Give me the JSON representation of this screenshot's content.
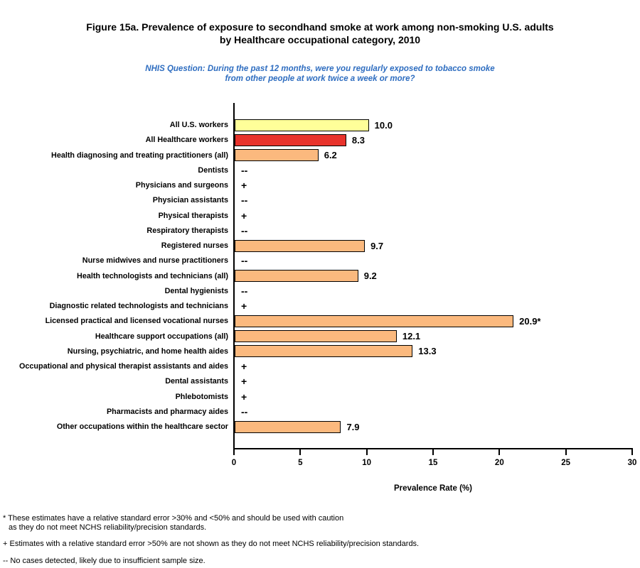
{
  "figure": {
    "title_line1": "Figure 15a. Prevalence of exposure to secondhand smoke at work among non-smoking U.S. adults",
    "title_line2": "by Healthcare occupational category, 2010",
    "subtitle_line1": "NHIS Question: During the past 12 months, were you regularly exposed to tobacco smoke",
    "subtitle_line2": "from other people at work twice a week or more?"
  },
  "colors": {
    "subtitle_blue": "#2E6DC0",
    "bar_yellow": "#FFFF99",
    "bar_red": "#E8332C",
    "bar_orange": "#FBB97E",
    "axis": "#000000"
  },
  "chart_data": {
    "type": "bar",
    "orientation": "horizontal",
    "title": "Figure 15a. Prevalence of exposure to secondhand smoke at work among non-smoking U.S. adults by Healthcare occupational category, 2010",
    "xlabel": "Prevalence Rate (%)",
    "xlim": [
      0,
      30
    ],
    "xticks": [
      0,
      5,
      10,
      15,
      20,
      25,
      30
    ],
    "grid": false,
    "legend": null,
    "categories": [
      "All U.S. workers",
      "All Healthcare workers",
      "Health diagnosing and treating practitioners (all)",
      "Dentists",
      "Physicians and surgeons",
      "Physician assistants",
      "Physical therapists",
      "Respiratory therapists",
      "Registered nurses",
      "Nurse midwives and nurse practitioners",
      "Health technologists and technicians (all)",
      "Dental hygienists",
      "Diagnostic related technologists and technicians",
      "Licensed practical and licensed vocational nurses",
      "Healthcare support occupations (all)",
      "Nursing, psychiatric, and home health aides",
      "Occupational and physical therapist assistants and aides",
      "Dental assistants",
      "Phlebotomists",
      "Pharmacists and pharmacy aides",
      "Other occupations within the healthcare sector"
    ],
    "values": [
      10.0,
      8.3,
      6.2,
      null,
      null,
      null,
      null,
      null,
      9.7,
      null,
      9.2,
      null,
      null,
      20.9,
      12.1,
      13.3,
      null,
      null,
      null,
      null,
      7.9
    ],
    "value_labels": [
      "10.0",
      "8.3",
      "6.2",
      "--",
      "+",
      "--",
      "+",
      "--",
      "9.7",
      "--",
      "9.2",
      "--",
      "+",
      "20.9*",
      "12.1",
      "13.3",
      "+",
      "+",
      "+",
      "--",
      "7.9"
    ],
    "bar_colors": [
      "#FFFF99",
      "#E8332C",
      "#FBB97E",
      null,
      null,
      null,
      null,
      null,
      "#FBB97E",
      null,
      "#FBB97E",
      null,
      null,
      "#FBB97E",
      "#FBB97E",
      "#FBB97E",
      null,
      null,
      null,
      null,
      "#FBB97E"
    ]
  },
  "footnotes": {
    "star_line1": "* These estimates have a relative standard error >30% and <50% and should be used with caution",
    "star_line2": "as they do not meet NCHS reliability/precision standards.",
    "plus": "+ Estimates with a relative standard error >50% are not shown as they do not meet NCHS reliability/precision standards.",
    "dash": "-- No cases detected, likely due to insufficient sample size."
  }
}
